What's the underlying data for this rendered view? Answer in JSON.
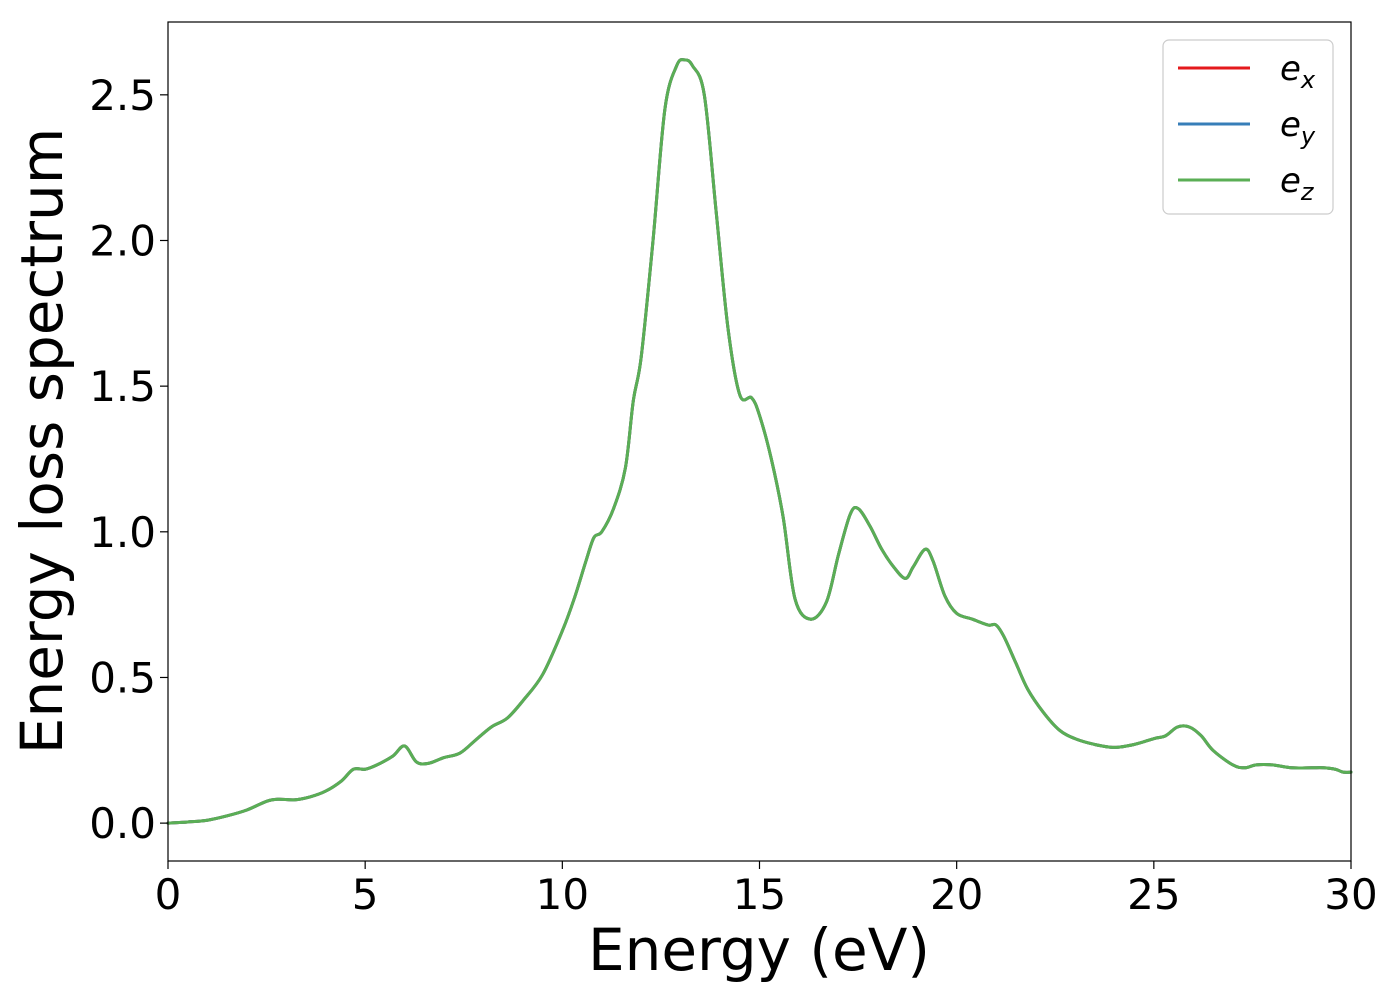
{
  "chart_data": {
    "type": "line",
    "title": "",
    "xlabel": "Energy (eV)",
    "ylabel": "Energy loss spectrum",
    "xlim": [
      0,
      30
    ],
    "ylim": [
      -0.13,
      2.75
    ],
    "xticks": [
      0,
      5,
      10,
      15,
      20,
      25,
      30
    ],
    "xtick_labels": [
      "0",
      "5",
      "10",
      "15",
      "20",
      "25",
      "30"
    ],
    "yticks": [
      0.0,
      0.5,
      1.0,
      1.5,
      2.0,
      2.5
    ],
    "ytick_labels": [
      "0.0",
      "0.5",
      "1.0",
      "1.5",
      "2.0",
      "2.5"
    ],
    "grid": false,
    "legend_position": "top-right",
    "x": [
      0,
      0.5,
      1,
      1.5,
      2,
      2.5,
      2.8,
      3.2,
      3.6,
      4,
      4.4,
      4.7,
      5.0,
      5.3,
      5.7,
      6.0,
      6.3,
      6.6,
      7.0,
      7.4,
      7.8,
      8.2,
      8.6,
      9.0,
      9.5,
      10.0,
      10.3,
      10.6,
      10.8,
      11.0,
      11.3,
      11.6,
      11.8,
      12.0,
      12.3,
      12.6,
      12.9,
      13.1,
      13.3,
      13.6,
      13.9,
      14.2,
      14.5,
      14.8,
      15.0,
      15.3,
      15.6,
      15.9,
      16.3,
      16.7,
      17.0,
      17.3,
      17.5,
      17.8,
      18.1,
      18.4,
      18.7,
      18.9,
      19.2,
      19.4,
      19.7,
      20.0,
      20.4,
      20.8,
      21.0,
      21.2,
      21.5,
      21.8,
      22.2,
      22.6,
      23.0,
      23.5,
      24.0,
      24.5,
      25.0,
      25.3,
      25.6,
      25.9,
      26.2,
      26.5,
      27.0,
      27.3,
      27.6,
      28.0,
      28.5,
      29.0,
      29.3,
      29.6,
      29.8,
      30.0
    ],
    "series": [
      {
        "name": "e_x",
        "label_base": "e",
        "label_sub": "x",
        "color": "#e41a1c",
        "y": [
          0.0,
          0.004,
          0.01,
          0.025,
          0.045,
          0.075,
          0.082,
          0.08,
          0.09,
          0.11,
          0.145,
          0.185,
          0.185,
          0.2,
          0.23,
          0.265,
          0.21,
          0.205,
          0.225,
          0.24,
          0.285,
          0.33,
          0.36,
          0.42,
          0.51,
          0.66,
          0.77,
          0.9,
          0.98,
          1.0,
          1.08,
          1.22,
          1.45,
          1.6,
          2.0,
          2.45,
          2.6,
          2.62,
          2.6,
          2.5,
          2.1,
          1.7,
          1.47,
          1.46,
          1.4,
          1.25,
          1.05,
          0.77,
          0.7,
          0.76,
          0.92,
          1.06,
          1.08,
          1.02,
          0.94,
          0.88,
          0.84,
          0.88,
          0.94,
          0.9,
          0.78,
          0.72,
          0.7,
          0.68,
          0.68,
          0.64,
          0.55,
          0.46,
          0.38,
          0.32,
          0.29,
          0.27,
          0.26,
          0.27,
          0.29,
          0.3,
          0.33,
          0.33,
          0.3,
          0.25,
          0.2,
          0.19,
          0.2,
          0.2,
          0.19,
          0.19,
          0.19,
          0.185,
          0.175,
          0.175
        ]
      },
      {
        "name": "e_y",
        "label_base": "e",
        "label_sub": "y",
        "color": "#377eb8",
        "y": [
          0.0,
          0.004,
          0.01,
          0.025,
          0.045,
          0.075,
          0.082,
          0.08,
          0.09,
          0.11,
          0.145,
          0.185,
          0.185,
          0.2,
          0.23,
          0.265,
          0.21,
          0.205,
          0.225,
          0.24,
          0.285,
          0.33,
          0.36,
          0.42,
          0.51,
          0.66,
          0.77,
          0.9,
          0.98,
          1.0,
          1.08,
          1.22,
          1.45,
          1.6,
          2.0,
          2.45,
          2.6,
          2.62,
          2.6,
          2.5,
          2.1,
          1.7,
          1.47,
          1.46,
          1.4,
          1.25,
          1.05,
          0.77,
          0.7,
          0.76,
          0.92,
          1.06,
          1.08,
          1.02,
          0.94,
          0.88,
          0.84,
          0.88,
          0.94,
          0.9,
          0.78,
          0.72,
          0.7,
          0.68,
          0.68,
          0.64,
          0.55,
          0.46,
          0.38,
          0.32,
          0.29,
          0.27,
          0.26,
          0.27,
          0.29,
          0.3,
          0.33,
          0.33,
          0.3,
          0.25,
          0.2,
          0.19,
          0.2,
          0.2,
          0.19,
          0.19,
          0.19,
          0.185,
          0.175,
          0.175
        ]
      },
      {
        "name": "e_z",
        "label_base": "e",
        "label_sub": "z",
        "color": "#5aae55",
        "y": [
          0.0,
          0.004,
          0.01,
          0.025,
          0.045,
          0.075,
          0.082,
          0.08,
          0.09,
          0.11,
          0.145,
          0.185,
          0.185,
          0.2,
          0.23,
          0.265,
          0.21,
          0.205,
          0.225,
          0.24,
          0.285,
          0.33,
          0.36,
          0.42,
          0.51,
          0.66,
          0.77,
          0.9,
          0.98,
          1.0,
          1.08,
          1.22,
          1.45,
          1.6,
          2.0,
          2.45,
          2.6,
          2.62,
          2.6,
          2.5,
          2.1,
          1.7,
          1.47,
          1.46,
          1.4,
          1.25,
          1.05,
          0.77,
          0.7,
          0.76,
          0.92,
          1.06,
          1.08,
          1.02,
          0.94,
          0.88,
          0.84,
          0.88,
          0.94,
          0.9,
          0.78,
          0.72,
          0.7,
          0.68,
          0.68,
          0.64,
          0.55,
          0.46,
          0.38,
          0.32,
          0.29,
          0.27,
          0.26,
          0.27,
          0.29,
          0.3,
          0.33,
          0.33,
          0.3,
          0.25,
          0.2,
          0.19,
          0.2,
          0.2,
          0.19,
          0.19,
          0.19,
          0.185,
          0.175,
          0.175
        ]
      }
    ]
  }
}
